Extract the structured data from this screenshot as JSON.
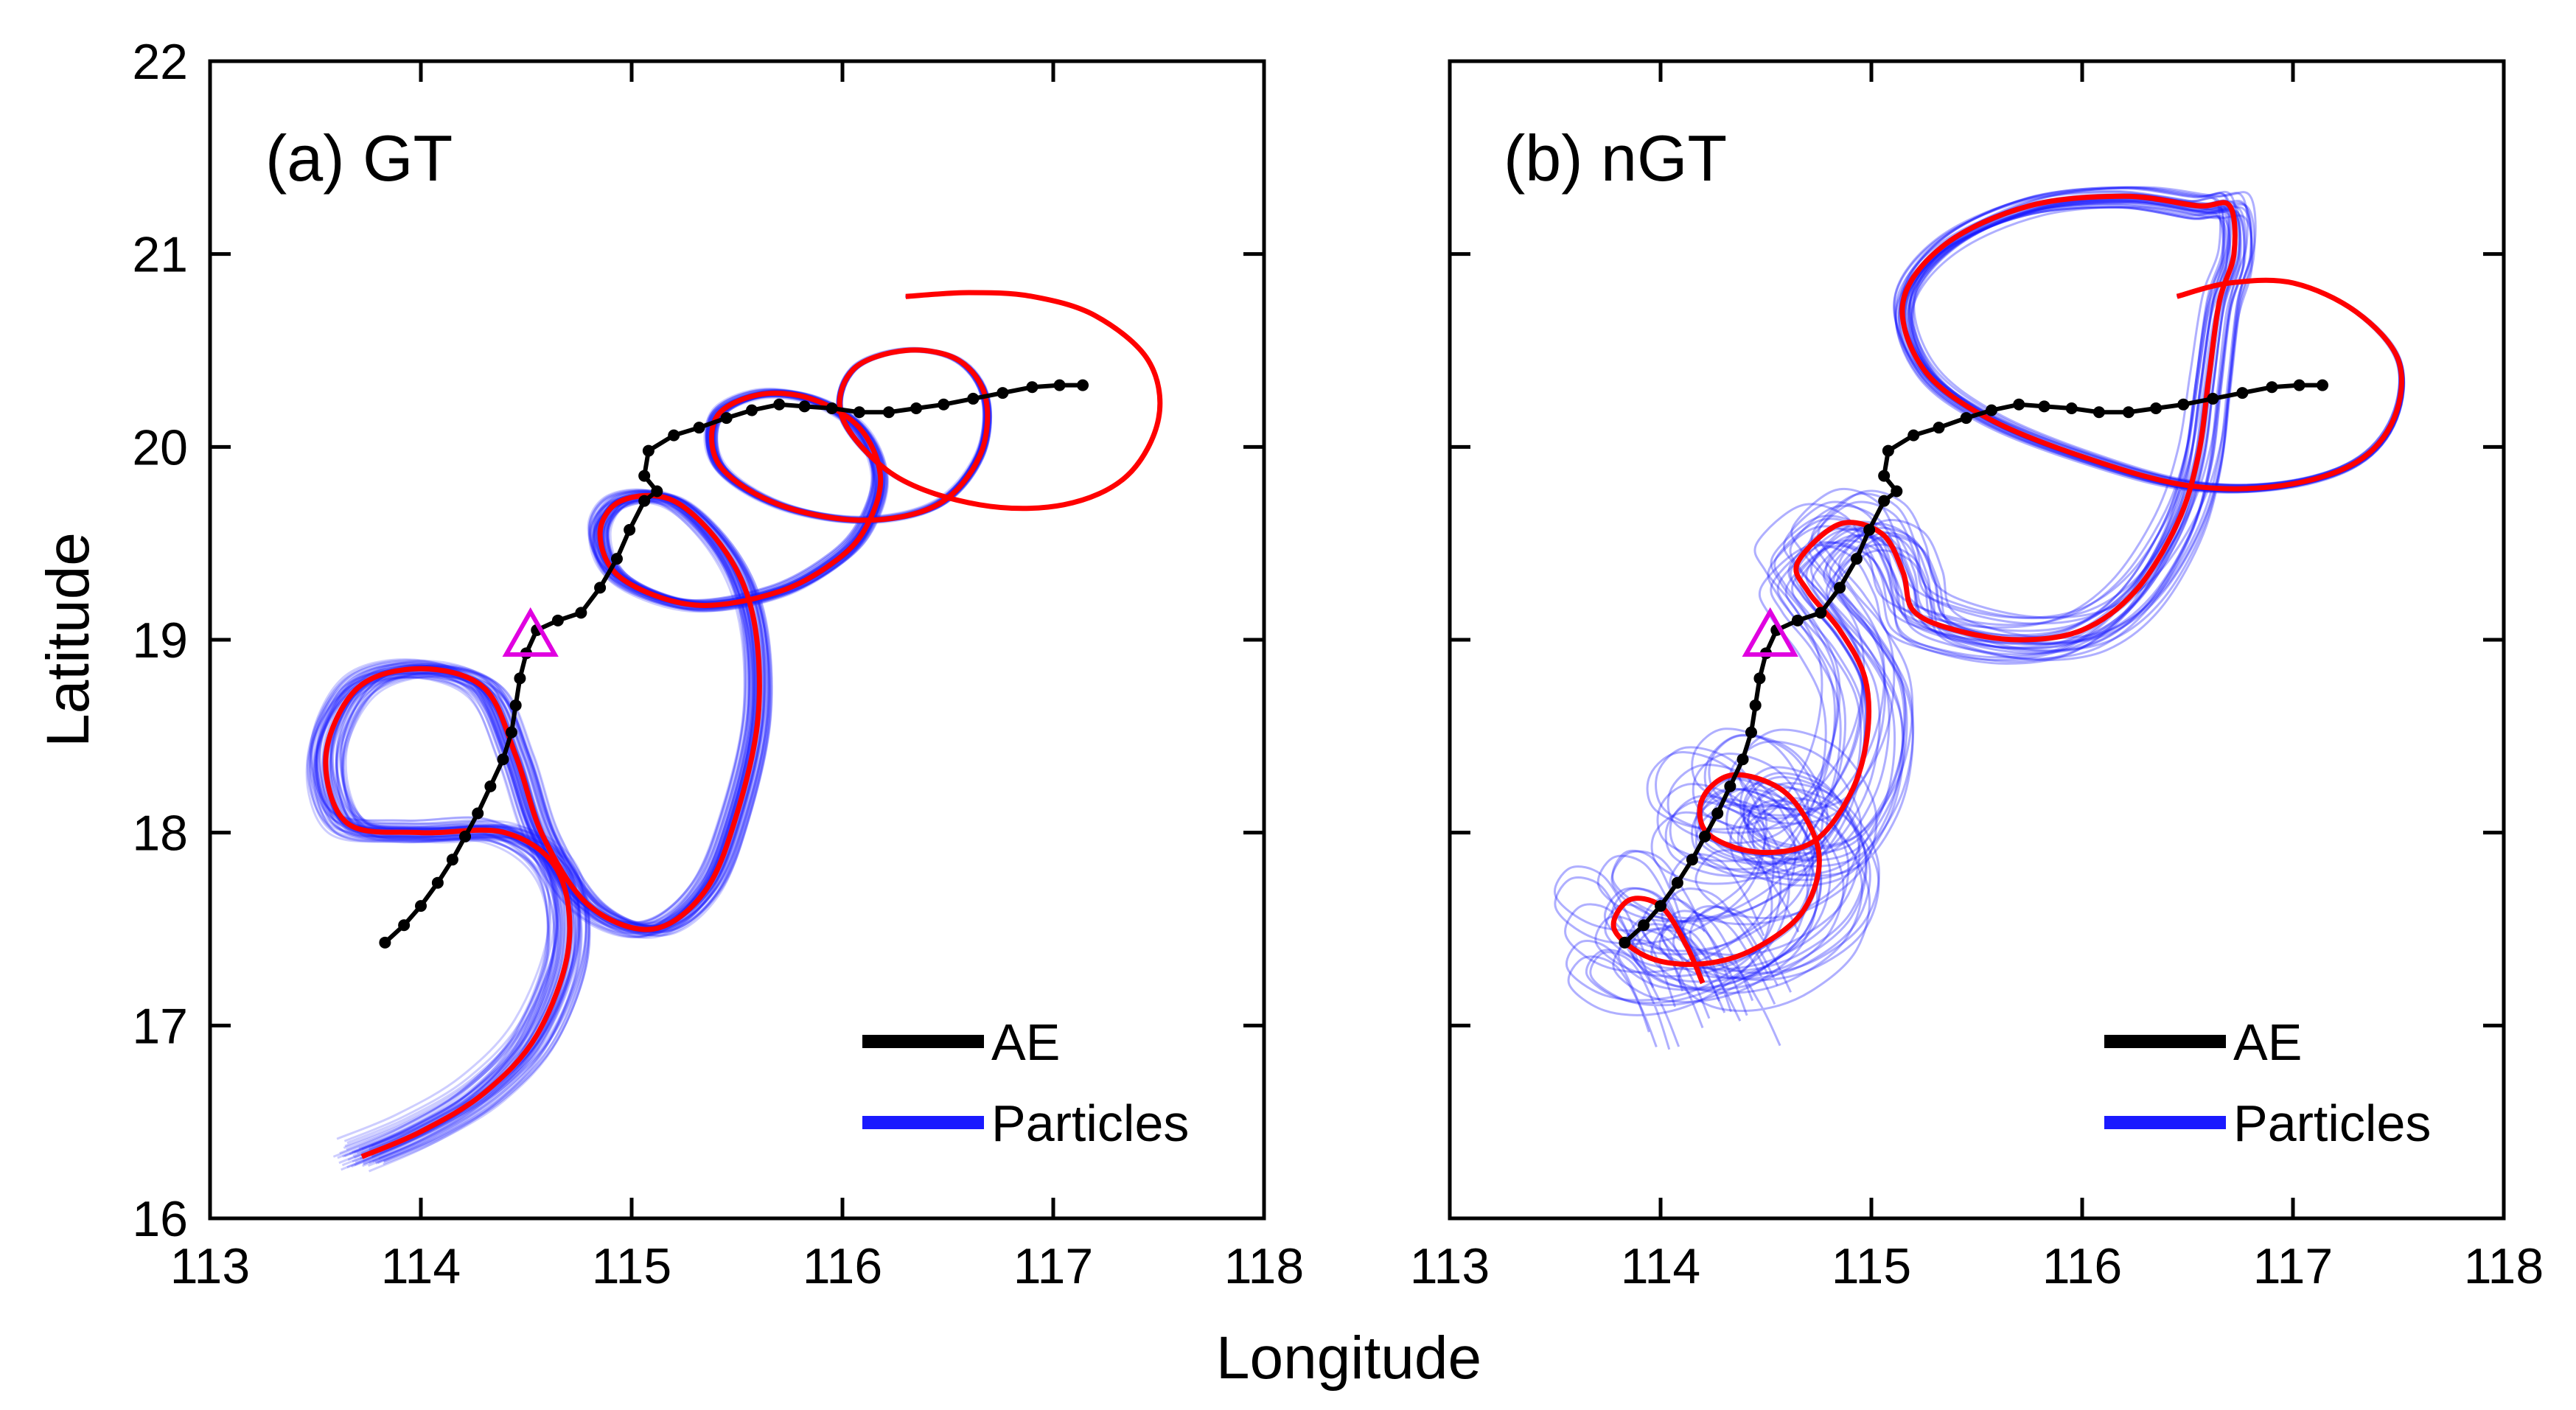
{
  "chart_data": {
    "type": "line",
    "xlabel": "Longitude",
    "ylabel": "Latitude",
    "xlim": [
      113,
      118
    ],
    "ylim": [
      16,
      22
    ],
    "xticks": [
      "113",
      "114",
      "115",
      "116",
      "117",
      "118"
    ],
    "yticks": [
      "16",
      "17",
      "18",
      "19",
      "20",
      "21",
      "22"
    ],
    "colors": {
      "ae": "#000000",
      "particles": "#1a1aff",
      "mean": "#ff0000",
      "origin": "#e000e0"
    },
    "legend": {
      "placement": "bottom-right",
      "entries": [
        "AE",
        "Particles"
      ]
    },
    "origin_marker": {
      "lon": 114.52,
      "lat": 19.0
    },
    "ae_track": [
      [
        113.83,
        17.43
      ],
      [
        113.92,
        17.52
      ],
      [
        114.0,
        17.62
      ],
      [
        114.08,
        17.74
      ],
      [
        114.15,
        17.86
      ],
      [
        114.21,
        17.98
      ],
      [
        114.27,
        18.1
      ],
      [
        114.33,
        18.24
      ],
      [
        114.39,
        18.38
      ],
      [
        114.43,
        18.52
      ],
      [
        114.45,
        18.66
      ],
      [
        114.47,
        18.8
      ],
      [
        114.5,
        18.93
      ],
      [
        114.55,
        19.05
      ],
      [
        114.65,
        19.1
      ],
      [
        114.76,
        19.14
      ],
      [
        114.85,
        19.27
      ],
      [
        114.93,
        19.42
      ],
      [
        114.99,
        19.57
      ],
      [
        115.06,
        19.72
      ],
      [
        115.12,
        19.77
      ],
      [
        115.06,
        19.85
      ],
      [
        115.08,
        19.98
      ],
      [
        115.2,
        20.06
      ],
      [
        115.32,
        20.1
      ],
      [
        115.45,
        20.15
      ],
      [
        115.57,
        20.19
      ],
      [
        115.7,
        20.22
      ],
      [
        115.82,
        20.21
      ],
      [
        115.95,
        20.2
      ],
      [
        116.08,
        20.18
      ],
      [
        116.22,
        20.18
      ],
      [
        116.35,
        20.2
      ],
      [
        116.48,
        20.22
      ],
      [
        116.62,
        20.25
      ],
      [
        116.76,
        20.28
      ],
      [
        116.9,
        20.31
      ],
      [
        117.03,
        20.32
      ],
      [
        117.14,
        20.32
      ]
    ],
    "panels": [
      {
        "label": "(a) GT",
        "mean_track": [
          [
            113.72,
            16.32
          ],
          [
            114.0,
            16.45
          ],
          [
            114.3,
            16.65
          ],
          [
            114.55,
            16.95
          ],
          [
            114.7,
            17.4
          ],
          [
            114.65,
            17.8
          ],
          [
            114.4,
            18.0
          ],
          [
            114.0,
            18.0
          ],
          [
            113.65,
            18.05
          ],
          [
            113.55,
            18.4
          ],
          [
            113.7,
            18.75
          ],
          [
            114.0,
            18.85
          ],
          [
            114.3,
            18.75
          ],
          [
            114.45,
            18.4
          ],
          [
            114.58,
            17.98
          ],
          [
            114.8,
            17.62
          ],
          [
            115.1,
            17.5
          ],
          [
            115.35,
            17.7
          ],
          [
            115.5,
            18.1
          ],
          [
            115.6,
            18.6
          ],
          [
            115.58,
            19.1
          ],
          [
            115.45,
            19.45
          ],
          [
            115.2,
            19.72
          ],
          [
            114.95,
            19.72
          ],
          [
            114.85,
            19.55
          ],
          [
            114.95,
            19.32
          ],
          [
            115.3,
            19.18
          ],
          [
            115.7,
            19.25
          ],
          [
            115.98,
            19.42
          ],
          [
            116.12,
            19.6
          ],
          [
            116.18,
            19.85
          ],
          [
            116.08,
            20.1
          ],
          [
            115.85,
            20.25
          ],
          [
            115.6,
            20.27
          ],
          [
            115.4,
            20.15
          ],
          [
            115.42,
            19.9
          ],
          [
            115.7,
            19.7
          ],
          [
            116.1,
            19.62
          ],
          [
            116.45,
            19.7
          ],
          [
            116.65,
            19.95
          ],
          [
            116.68,
            20.25
          ],
          [
            116.55,
            20.45
          ],
          [
            116.3,
            20.5
          ],
          [
            116.05,
            20.4
          ],
          [
            116.0,
            20.15
          ],
          [
            116.25,
            19.85
          ],
          [
            116.65,
            19.7
          ],
          [
            117.05,
            19.7
          ],
          [
            117.35,
            19.85
          ],
          [
            117.5,
            20.15
          ],
          [
            117.45,
            20.45
          ],
          [
            117.2,
            20.68
          ],
          [
            116.9,
            20.78
          ],
          [
            116.6,
            20.8
          ],
          [
            116.3,
            20.78
          ]
        ],
        "particles": {
          "count": 60,
          "lon_spread": 0.11,
          "lat_spread": 0.07,
          "opacity": 0.22
        }
      },
      {
        "label": "(b) nGT",
        "mean_track": [
          [
            114.2,
            17.22
          ],
          [
            114.12,
            17.42
          ],
          [
            114.0,
            17.62
          ],
          [
            113.85,
            17.65
          ],
          [
            113.78,
            17.5
          ],
          [
            113.95,
            17.35
          ],
          [
            114.2,
            17.32
          ],
          [
            114.45,
            17.4
          ],
          [
            114.68,
            17.6
          ],
          [
            114.75,
            17.9
          ],
          [
            114.6,
            18.2
          ],
          [
            114.35,
            18.3
          ],
          [
            114.2,
            18.18
          ],
          [
            114.22,
            18.0
          ],
          [
            114.45,
            17.9
          ],
          [
            114.72,
            17.95
          ],
          [
            114.9,
            18.2
          ],
          [
            114.98,
            18.5
          ],
          [
            114.97,
            18.8
          ],
          [
            114.85,
            19.05
          ],
          [
            114.7,
            19.25
          ],
          [
            114.65,
            19.4
          ],
          [
            114.85,
            19.6
          ],
          [
            115.05,
            19.55
          ],
          [
            115.15,
            19.35
          ],
          [
            115.2,
            19.15
          ],
          [
            115.4,
            19.05
          ],
          [
            115.7,
            19.0
          ],
          [
            116.0,
            19.05
          ],
          [
            116.25,
            19.25
          ],
          [
            116.45,
            19.6
          ],
          [
            116.55,
            19.95
          ],
          [
            116.6,
            20.35
          ],
          [
            116.65,
            20.75
          ],
          [
            116.72,
            21.0
          ],
          [
            116.7,
            21.25
          ],
          [
            116.55,
            21.25
          ],
          [
            116.2,
            21.3
          ],
          [
            115.75,
            21.25
          ],
          [
            115.35,
            21.05
          ],
          [
            115.15,
            20.75
          ],
          [
            115.25,
            20.4
          ],
          [
            115.55,
            20.15
          ],
          [
            116.0,
            19.95
          ],
          [
            116.5,
            19.8
          ],
          [
            116.95,
            19.8
          ],
          [
            117.3,
            19.92
          ],
          [
            117.48,
            20.15
          ],
          [
            117.5,
            20.45
          ],
          [
            117.3,
            20.7
          ],
          [
            117.0,
            20.85
          ],
          [
            116.7,
            20.85
          ],
          [
            116.45,
            20.78
          ]
        ],
        "particles": {
          "count": 30,
          "lon_spread": 0.38,
          "lat_spread": 0.32,
          "opacity": 0.35
        }
      }
    ]
  }
}
